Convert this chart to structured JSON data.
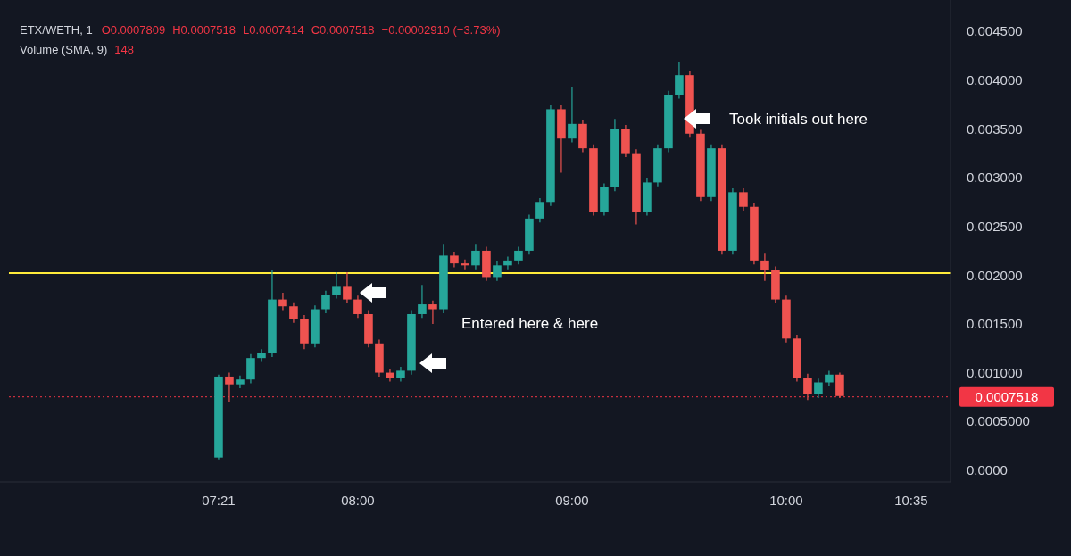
{
  "chart_data": {
    "type": "candlestick",
    "title": "ETX/WETH, 1",
    "annotations": [
      "O0.0007809",
      "H0.0007518",
      "L0.0007414",
      "C0.0007518",
      "−0.00002910 (−3.73%)",
      "Volume (SMA, 9)",
      "148",
      "Took initials out here",
      "Entered here & here"
    ],
    "x": [
      7.35,
      7.4,
      7.45,
      7.5,
      7.55,
      7.6,
      7.65,
      7.7,
      7.75,
      7.8,
      7.85,
      7.9,
      7.95,
      8.0,
      8.05,
      8.1,
      8.15,
      8.2,
      8.25,
      8.3,
      8.35,
      8.4,
      8.45,
      8.5,
      8.55,
      8.6,
      8.65,
      8.7,
      8.75,
      8.8,
      8.85,
      8.9,
      8.95,
      9.0,
      9.05,
      9.1,
      9.15,
      9.2,
      9.25,
      9.3,
      9.35,
      9.4,
      9.45,
      9.5,
      9.55,
      9.6,
      9.65,
      9.7,
      9.75,
      9.8,
      9.85,
      9.9,
      9.95,
      10.0,
      10.05,
      10.1,
      10.15,
      10.2,
      10.25
    ],
    "ohlc": [
      [
        0.00013,
        0.00098,
        0.00011,
        0.00096
      ],
      [
        0.00096,
        0.001,
        0.0007,
        0.00088
      ],
      [
        0.00088,
        0.00097,
        0.00084,
        0.00093
      ],
      [
        0.00093,
        0.00119,
        0.00089,
        0.00115
      ],
      [
        0.00115,
        0.00124,
        0.00111,
        0.0012
      ],
      [
        0.0012,
        0.00205,
        0.00116,
        0.00175
      ],
      [
        0.00175,
        0.00182,
        0.00164,
        0.00168
      ],
      [
        0.00168,
        0.00172,
        0.00151,
        0.00155
      ],
      [
        0.00155,
        0.00159,
        0.00124,
        0.0013
      ],
      [
        0.0013,
        0.00169,
        0.00126,
        0.00165
      ],
      [
        0.00165,
        0.00184,
        0.00161,
        0.0018
      ],
      [
        0.0018,
        0.00203,
        0.00176,
        0.00188
      ],
      [
        0.00188,
        0.00203,
        0.00171,
        0.00175
      ],
      [
        0.00175,
        0.00179,
        0.00156,
        0.0016
      ],
      [
        0.0016,
        0.00164,
        0.00126,
        0.0013
      ],
      [
        0.0013,
        0.00134,
        0.00096,
        0.001
      ],
      [
        0.001,
        0.00104,
        0.00091,
        0.00095
      ],
      [
        0.00095,
        0.00106,
        0.00091,
        0.00102
      ],
      [
        0.00102,
        0.00164,
        0.00098,
        0.0016
      ],
      [
        0.0016,
        0.0019,
        0.00156,
        0.0017
      ],
      [
        0.0017,
        0.00174,
        0.0015,
        0.00165
      ],
      [
        0.00165,
        0.00232,
        0.00161,
        0.0022
      ],
      [
        0.0022,
        0.00224,
        0.00208,
        0.00212
      ],
      [
        0.00212,
        0.00216,
        0.00206,
        0.0021
      ],
      [
        0.0021,
        0.00232,
        0.00206,
        0.00225
      ],
      [
        0.00225,
        0.00229,
        0.00194,
        0.00198
      ],
      [
        0.00198,
        0.00214,
        0.00194,
        0.0021
      ],
      [
        0.0021,
        0.00219,
        0.00206,
        0.00215
      ],
      [
        0.00215,
        0.00229,
        0.00211,
        0.00225
      ],
      [
        0.00225,
        0.00262,
        0.00221,
        0.00258
      ],
      [
        0.00258,
        0.00279,
        0.00254,
        0.00275
      ],
      [
        0.00275,
        0.00374,
        0.00271,
        0.0037
      ],
      [
        0.0037,
        0.00374,
        0.00305,
        0.0034
      ],
      [
        0.0034,
        0.00393,
        0.00336,
        0.00355
      ],
      [
        0.00355,
        0.00359,
        0.00326,
        0.0033
      ],
      [
        0.0033,
        0.00334,
        0.00261,
        0.00265
      ],
      [
        0.00265,
        0.00294,
        0.00261,
        0.0029
      ],
      [
        0.0029,
        0.0036,
        0.00286,
        0.0035
      ],
      [
        0.0035,
        0.00354,
        0.00321,
        0.00325
      ],
      [
        0.00325,
        0.00329,
        0.00252,
        0.00265
      ],
      [
        0.00265,
        0.00299,
        0.00261,
        0.00295
      ],
      [
        0.00295,
        0.00334,
        0.00291,
        0.0033
      ],
      [
        0.0033,
        0.00389,
        0.00326,
        0.00385
      ],
      [
        0.00385,
        0.00418,
        0.00381,
        0.00405
      ],
      [
        0.00405,
        0.00409,
        0.00341,
        0.00345
      ],
      [
        0.00345,
        0.00349,
        0.00276,
        0.0028
      ],
      [
        0.0028,
        0.00334,
        0.00276,
        0.0033
      ],
      [
        0.0033,
        0.00334,
        0.00221,
        0.00225
      ],
      [
        0.00225,
        0.00289,
        0.00221,
        0.00285
      ],
      [
        0.00285,
        0.00289,
        0.00266,
        0.0027
      ],
      [
        0.0027,
        0.00274,
        0.00211,
        0.00215
      ],
      [
        0.00215,
        0.00222,
        0.00194,
        0.00205
      ],
      [
        0.00205,
        0.00209,
        0.00171,
        0.00175
      ],
      [
        0.00175,
        0.00179,
        0.00131,
        0.00135
      ],
      [
        0.00135,
        0.00139,
        0.00091,
        0.00095
      ],
      [
        0.00095,
        0.00099,
        0.00072,
        0.00078
      ],
      [
        0.00078,
        0.00094,
        0.00074,
        0.0009
      ],
      [
        0.0009,
        0.00102,
        0.00086,
        0.00098
      ],
      [
        0.00098,
        0.001,
        0.00074,
        0.00076
      ]
    ],
    "xlim": [
      6.371,
      10.767
    ],
    "xticks": [
      {
        "value": 7.35,
        "label": "07:21"
      },
      {
        "value": 8,
        "label": "08:00"
      },
      {
        "value": 9,
        "label": "09:00"
      },
      {
        "value": 10,
        "label": "10:00"
      },
      {
        "value": 10.5833,
        "label": "10:35"
      }
    ],
    "ylim": [
      -0.00012,
      0.00482
    ],
    "yticks": [
      {
        "value": 0,
        "label": "0.0000"
      },
      {
        "value": 0.0005,
        "label": "0.0005000"
      },
      {
        "value": 0.001,
        "label": "0.001000"
      },
      {
        "value": 0.0015,
        "label": "0.001500"
      },
      {
        "value": 0.002,
        "label": "0.002000"
      },
      {
        "value": 0.0025,
        "label": "0.002500"
      },
      {
        "value": 0.003,
        "label": "0.003000"
      },
      {
        "value": 0.0035,
        "label": "0.003500"
      },
      {
        "value": 0.004,
        "label": "0.004000"
      },
      {
        "value": 0.0045,
        "label": "0.004500"
      }
    ],
    "ref_lines": [
      {
        "axis": "y",
        "value": 0.00202,
        "color": "#ffeb3b",
        "line_style": "solid"
      },
      {
        "axis": "y",
        "value": 0.0007518,
        "label": "0.0007518",
        "color": "#f23645",
        "line_style": "dotted"
      }
    ],
    "tick_labels": "xy"
  }
}
